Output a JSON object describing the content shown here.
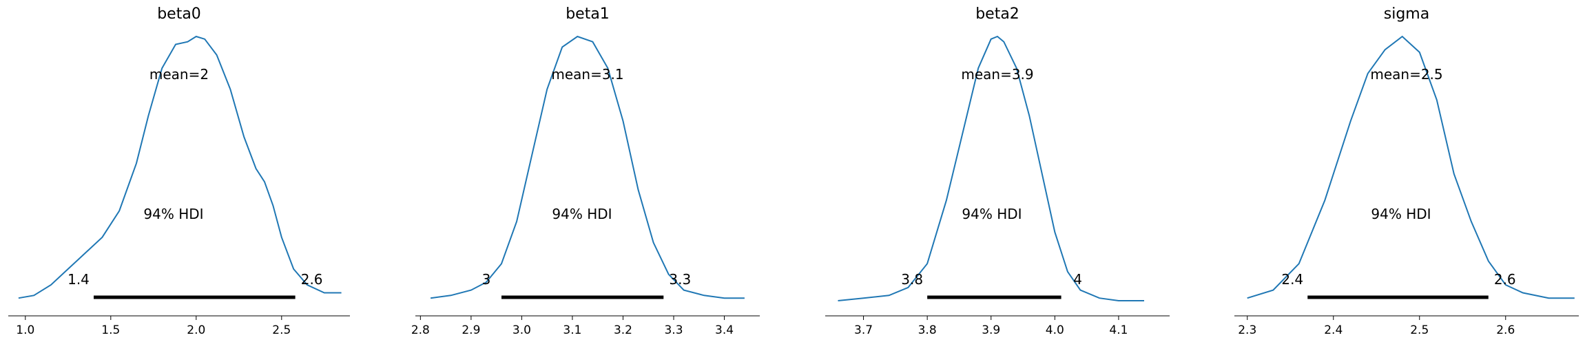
{
  "chart_data": [
    {
      "type": "line",
      "title": "beta0",
      "mean_label": "mean=2",
      "hdi_label": "94% HDI",
      "hdi_low_label": "1.4",
      "hdi_high_label": "2.6",
      "hdi": [
        1.4,
        2.58
      ],
      "xlim": [
        0.9,
        2.9
      ],
      "xticks": [
        1.0,
        1.5,
        2.0,
        2.5
      ],
      "xtick_labels": [
        "1.0",
        "1.5",
        "2.0",
        "2.5"
      ],
      "color": "#1f77b4",
      "x": [
        0.96,
        1.05,
        1.15,
        1.25,
        1.35,
        1.45,
        1.55,
        1.65,
        1.72,
        1.8,
        1.88,
        1.95,
        2.0,
        2.05,
        2.12,
        2.2,
        2.28,
        2.35,
        2.4,
        2.45,
        2.5,
        2.57,
        2.65,
        2.75,
        2.85
      ],
      "y": [
        0.01,
        0.02,
        0.06,
        0.12,
        0.18,
        0.24,
        0.34,
        0.52,
        0.7,
        0.88,
        0.97,
        0.98,
        1.0,
        0.99,
        0.93,
        0.8,
        0.62,
        0.5,
        0.45,
        0.36,
        0.24,
        0.12,
        0.06,
        0.03,
        0.03
      ]
    },
    {
      "type": "line",
      "title": "beta1",
      "mean_label": "mean=3.1",
      "hdi_label": "94% HDI",
      "hdi_low_label": "3",
      "hdi_high_label": "3.3",
      "hdi": [
        2.96,
        3.28
      ],
      "xlim": [
        2.79,
        3.47
      ],
      "xticks": [
        2.8,
        2.9,
        3.0,
        3.1,
        3.2,
        3.3,
        3.4
      ],
      "xtick_labels": [
        "2.8",
        "2.9",
        "3.0",
        "3.1",
        "3.2",
        "3.3",
        "3.4"
      ],
      "color": "#1f77b4",
      "x": [
        2.82,
        2.86,
        2.9,
        2.93,
        2.96,
        2.99,
        3.02,
        3.05,
        3.08,
        3.11,
        3.14,
        3.17,
        3.2,
        3.23,
        3.26,
        3.29,
        3.32,
        3.36,
        3.4,
        3.44
      ],
      "y": [
        0.01,
        0.02,
        0.04,
        0.07,
        0.14,
        0.3,
        0.55,
        0.8,
        0.96,
        1.0,
        0.98,
        0.88,
        0.68,
        0.42,
        0.22,
        0.1,
        0.04,
        0.02,
        0.01,
        0.01
      ]
    },
    {
      "type": "line",
      "title": "beta2",
      "mean_label": "mean=3.9",
      "hdi_label": "94% HDI",
      "hdi_low_label": "3.8",
      "hdi_high_label": "4",
      "hdi": [
        3.8,
        4.01
      ],
      "xlim": [
        3.64,
        4.18
      ],
      "xticks": [
        3.7,
        3.8,
        3.9,
        4.0,
        4.1
      ],
      "xtick_labels": [
        "3.7",
        "3.8",
        "3.9",
        "4.0",
        "4.1"
      ],
      "color": "#1f77b4",
      "x": [
        3.66,
        3.7,
        3.74,
        3.77,
        3.8,
        3.83,
        3.86,
        3.88,
        3.9,
        3.91,
        3.92,
        3.94,
        3.96,
        3.98,
        4.0,
        4.02,
        4.04,
        4.07,
        4.1,
        4.14
      ],
      "y": [
        0.0,
        0.01,
        0.02,
        0.05,
        0.14,
        0.38,
        0.68,
        0.88,
        0.99,
        1.0,
        0.98,
        0.88,
        0.7,
        0.48,
        0.26,
        0.11,
        0.04,
        0.01,
        0.0,
        0.0
      ]
    },
    {
      "type": "line",
      "title": "sigma",
      "mean_label": "mean=2.5",
      "hdi_label": "94% HDI",
      "hdi_low_label": "2.4",
      "hdi_high_label": "2.6",
      "hdi": [
        2.37,
        2.58
      ],
      "xlim": [
        2.285,
        2.685
      ],
      "xticks": [
        2.3,
        2.4,
        2.5,
        2.6
      ],
      "xtick_labels": [
        "2.3",
        "2.4",
        "2.5",
        "2.6"
      ],
      "color": "#1f77b4",
      "x": [
        2.3,
        2.33,
        2.36,
        2.39,
        2.42,
        2.44,
        2.46,
        2.48,
        2.5,
        2.52,
        2.54,
        2.56,
        2.58,
        2.6,
        2.62,
        2.65,
        2.68
      ],
      "y": [
        0.01,
        0.04,
        0.14,
        0.38,
        0.68,
        0.86,
        0.95,
        1.0,
        0.94,
        0.76,
        0.48,
        0.3,
        0.15,
        0.06,
        0.03,
        0.01,
        0.01
      ]
    }
  ]
}
